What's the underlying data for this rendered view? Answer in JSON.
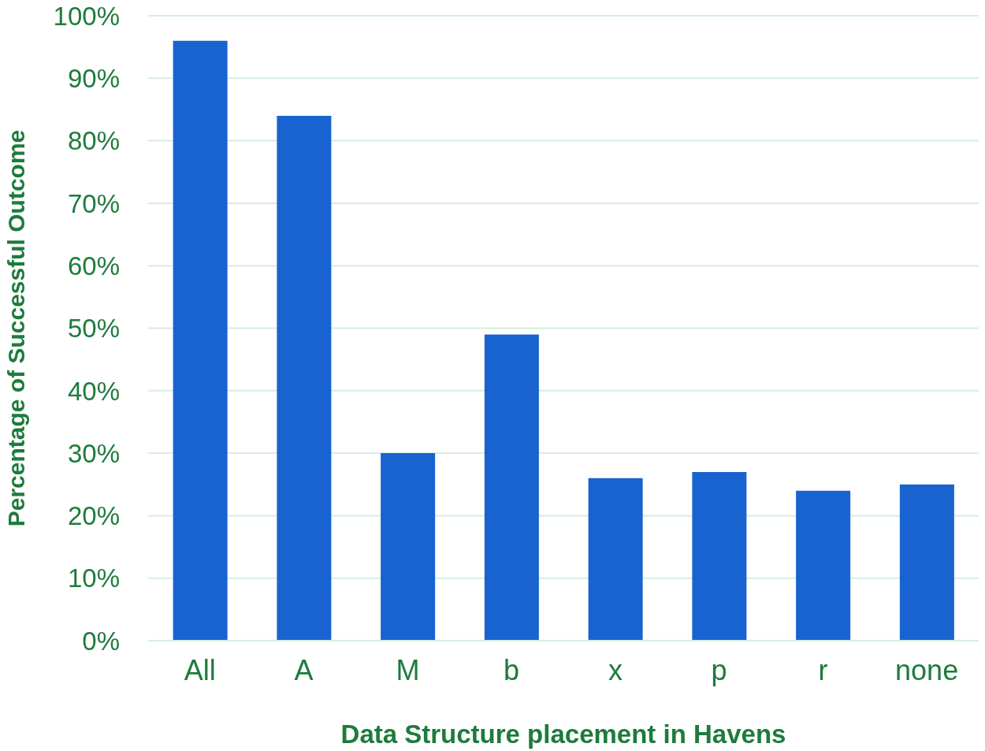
{
  "chart_data": {
    "type": "bar",
    "xlabel": "Data Structure placement in Havens",
    "ylabel": "Percentage  of Successful Outcome",
    "categories": [
      "All",
      "A",
      "M",
      "b",
      "x",
      "p",
      "r",
      "none"
    ],
    "values": [
      96,
      84,
      30,
      49,
      26,
      27,
      24,
      25
    ],
    "color": "#1863cf",
    "ylim": [
      0,
      100
    ],
    "yticks": [
      {
        "value": 0,
        "label": "0%"
      },
      {
        "value": 10,
        "label": "10%"
      },
      {
        "value": 20,
        "label": "20%"
      },
      {
        "value": 30,
        "label": "30%"
      },
      {
        "value": 40,
        "label": "40%"
      },
      {
        "value": 50,
        "label": "50%"
      },
      {
        "value": 60,
        "label": "60%"
      },
      {
        "value": 70,
        "label": "70%"
      },
      {
        "value": 80,
        "label": "80%"
      },
      {
        "value": 90,
        "label": "90%"
      },
      {
        "value": 100,
        "label": "100%"
      }
    ],
    "grid": "y"
  }
}
